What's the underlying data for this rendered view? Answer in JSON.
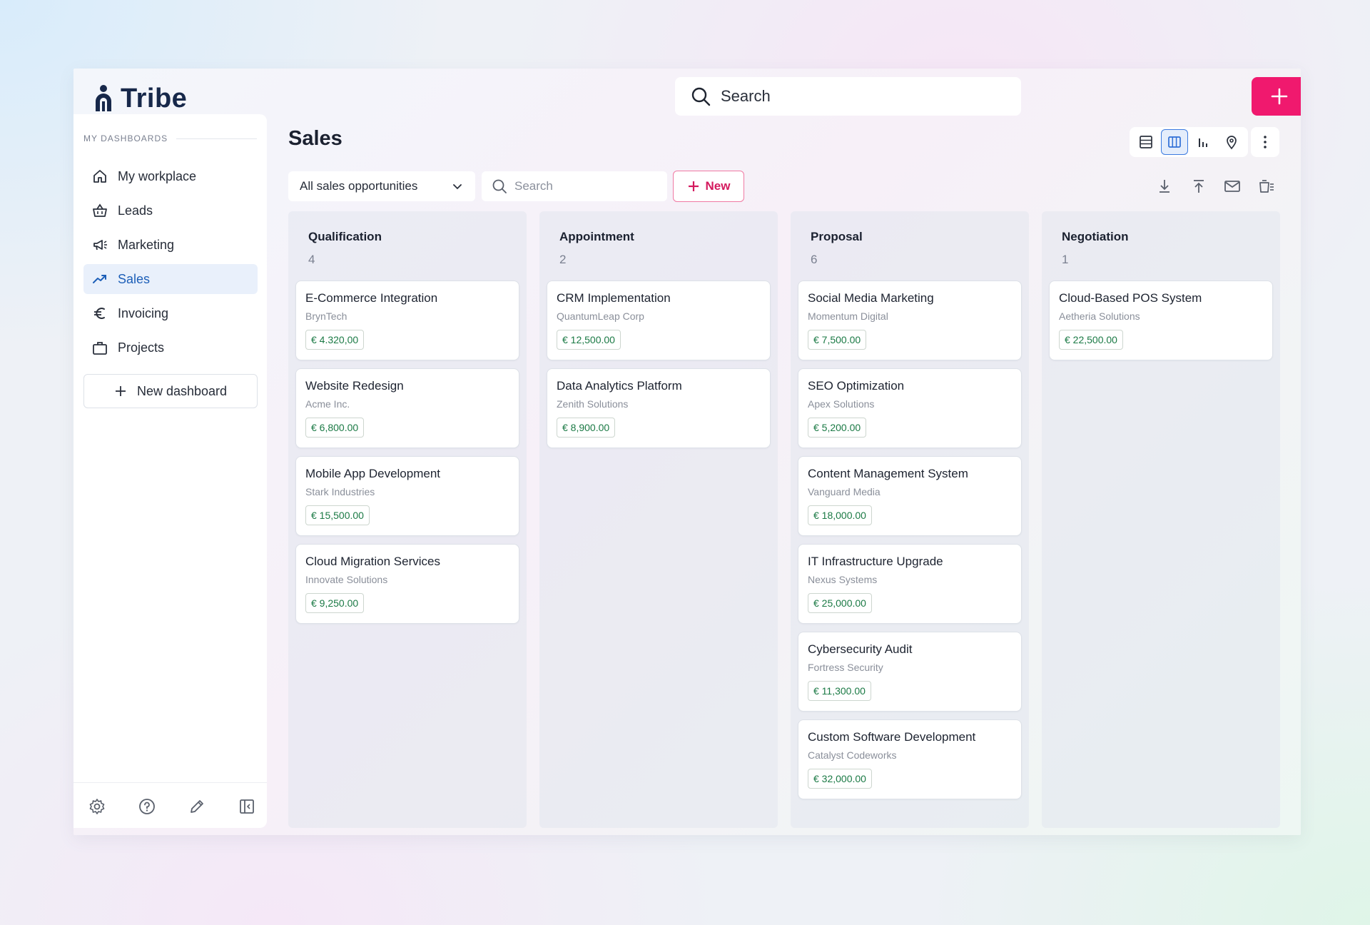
{
  "app": {
    "name": "Tribe"
  },
  "header": {
    "search_placeholder": "Search"
  },
  "sidebar": {
    "section_label": "MY DASHBOARDS",
    "items": [
      {
        "label": "My workplace",
        "icon": "home-icon",
        "active": false
      },
      {
        "label": "Leads",
        "icon": "basket-icon",
        "active": false
      },
      {
        "label": "Marketing",
        "icon": "megaphone-icon",
        "active": false
      },
      {
        "label": "Sales",
        "icon": "trend-up-icon",
        "active": true
      },
      {
        "label": "Invoicing",
        "icon": "euro-icon",
        "active": false
      },
      {
        "label": "Projects",
        "icon": "briefcase-icon",
        "active": false
      }
    ],
    "new_dashboard_label": "New dashboard",
    "footer_icons": [
      "settings-icon",
      "help-icon",
      "edit-icon",
      "collapse-sidebar-icon"
    ]
  },
  "main": {
    "title": "Sales",
    "filter_value": "All sales opportunities",
    "search_placeholder": "Search",
    "new_label": "New",
    "views": [
      "table-view-icon",
      "board-view-icon",
      "chart-view-icon",
      "map-view-icon"
    ],
    "active_view": "board-view-icon"
  },
  "colors": {
    "accent": "#f0196e",
    "active_nav": "#1d5fb8",
    "amount": "#1b7a45"
  },
  "board": {
    "columns": [
      {
        "title": "Qualification",
        "count": "4",
        "cards": [
          {
            "title": "E-Commerce Integration",
            "company": "BrynTech",
            "amount": "€ 4.320,00"
          },
          {
            "title": "Website Redesign",
            "company": "Acme Inc.",
            "amount": "€ 6,800.00"
          },
          {
            "title": "Mobile App Development",
            "company": "Stark Industries",
            "amount": "€ 15,500.00"
          },
          {
            "title": "Cloud Migration Services",
            "company": "Innovate Solutions",
            "amount": "€ 9,250.00"
          }
        ]
      },
      {
        "title": "Appointment",
        "count": "2",
        "cards": [
          {
            "title": "CRM Implementation",
            "company": "QuantumLeap Corp",
            "amount": "€ 12,500.00"
          },
          {
            "title": "Data Analytics Platform",
            "company": "Zenith Solutions",
            "amount": "€ 8,900.00"
          }
        ]
      },
      {
        "title": "Proposal",
        "count": "6",
        "cards": [
          {
            "title": "Social Media Marketing",
            "company": "Momentum Digital",
            "amount": "€ 7,500.00"
          },
          {
            "title": "SEO Optimization",
            "company": "Apex Solutions",
            "amount": "€ 5,200.00"
          },
          {
            "title": "Content Management System",
            "company": "Vanguard Media",
            "amount": "€ 18,000.00"
          },
          {
            "title": "IT Infrastructure Upgrade",
            "company": "Nexus Systems",
            "amount": "€ 25,000.00"
          },
          {
            "title": "Cybersecurity Audit",
            "company": "Fortress Security",
            "amount": "€ 11,300.00"
          },
          {
            "title": "Custom Software Development",
            "company": "Catalyst Codeworks",
            "amount": "€ 32,000.00"
          }
        ]
      },
      {
        "title": "Negotiation",
        "count": "1",
        "cards": [
          {
            "title": "Cloud-Based POS System",
            "company": "Aetheria Solutions",
            "amount": "€ 22,500.00"
          }
        ]
      }
    ]
  }
}
